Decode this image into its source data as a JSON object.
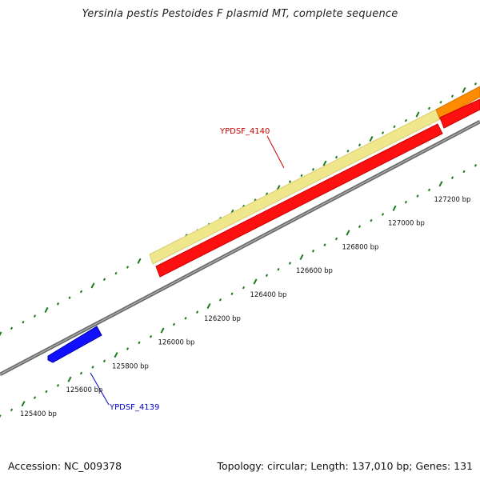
{
  "title": "Yersinia pestis Pestoides F plasmid MT, complete sequence",
  "footer": {
    "accession": "Accession: NC_009378",
    "summary": "Topology: circular; Length: 137,010 bp; Genes: 131"
  },
  "colors": {
    "backbone": "#888888",
    "tick": "#1a7a1a",
    "gene_red": "#ff1010",
    "gene_pale": "#f0e68c",
    "gene_orange": "#ff8c00",
    "gene_blue": "#1010ff",
    "label_red": "#cc0000",
    "label_blue": "#0000cc"
  },
  "scale": {
    "ticks": [
      {
        "label": "125400 bp"
      },
      {
        "label": "125600 bp"
      },
      {
        "label": "125800 bp"
      },
      {
        "label": "126000 bp"
      },
      {
        "label": "126200 bp"
      },
      {
        "label": "126400 bp"
      },
      {
        "label": "126600 bp"
      },
      {
        "label": "126800 bp"
      },
      {
        "label": "127000 bp"
      },
      {
        "label": "127200 bp"
      }
    ]
  },
  "genes": [
    {
      "id": "YPDSF_4140",
      "color_key": "label_red"
    },
    {
      "id": "YPDSF_4139",
      "color_key": "label_blue"
    }
  ]
}
